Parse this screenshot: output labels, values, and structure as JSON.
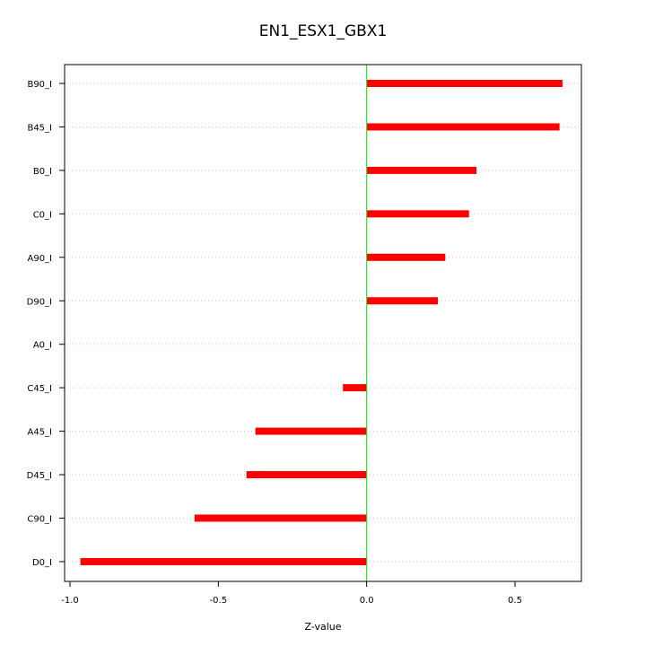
{
  "chart_data": {
    "type": "bar",
    "orientation": "horizontal",
    "title": "EN1_ESX1_GBX1",
    "xlabel": "Z-value",
    "ylabel": "",
    "xlim": [
      -1.0,
      0.72
    ],
    "xticks": [
      -1.0,
      -0.5,
      0.0,
      0.5
    ],
    "xtick_labels": [
      "-1.0",
      "-0.5",
      "0.0",
      "0.5"
    ],
    "categories": [
      "B90_I",
      "B45_I",
      "B0_I",
      "C0_I",
      "A90_I",
      "D90_I",
      "A0_I",
      "C45_I",
      "A45_I",
      "D45_I",
      "C90_I",
      "D0_I"
    ],
    "values": [
      0.66,
      0.65,
      0.37,
      0.345,
      0.265,
      0.24,
      0.0,
      -0.08,
      -0.375,
      -0.405,
      -0.58,
      -0.965
    ],
    "bar_color": "#ff0000",
    "zero_line_color": "#00ee00",
    "grid": "horizontal dotted"
  }
}
